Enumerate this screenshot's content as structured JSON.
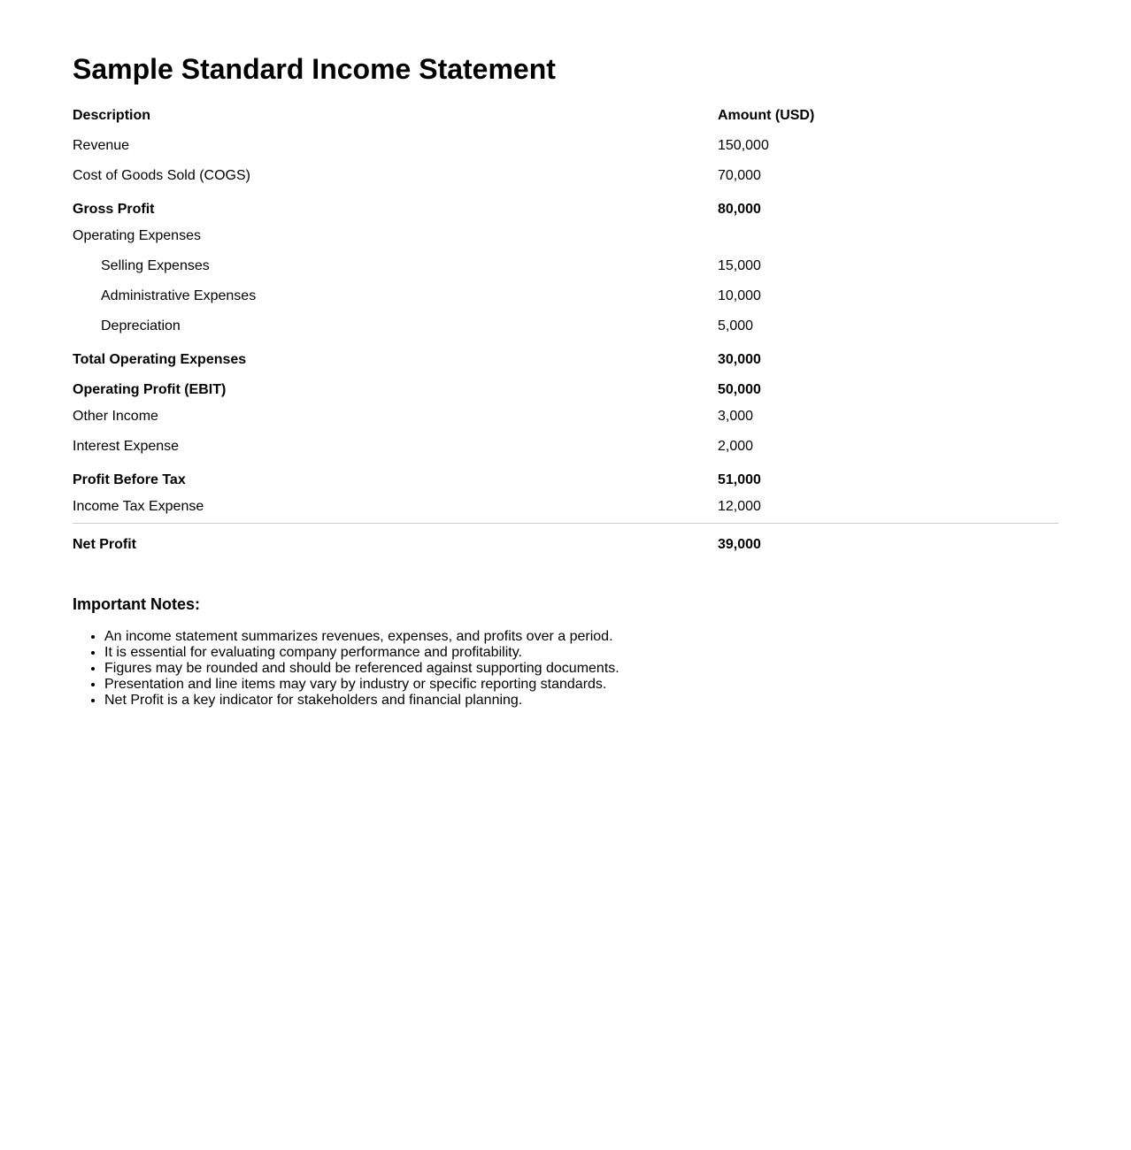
{
  "title": "Sample Standard Income Statement",
  "table": {
    "headers": {
      "description": "Description",
      "amount": "Amount (USD)"
    },
    "rows": [
      {
        "description": "Revenue",
        "amount": "150,000"
      },
      {
        "description": "Cost of Goods Sold (COGS)",
        "amount": "70,000"
      },
      {
        "description": "Gross Profit",
        "amount": "80,000"
      },
      {
        "description": "Operating Expenses",
        "amount": ""
      },
      {
        "description": "Selling Expenses",
        "amount": "15,000"
      },
      {
        "description": "Administrative Expenses",
        "amount": "10,000"
      },
      {
        "description": "Depreciation",
        "amount": "5,000"
      },
      {
        "description": "Total Operating Expenses",
        "amount": "30,000"
      },
      {
        "description": "Operating Profit (EBIT)",
        "amount": "50,000"
      },
      {
        "description": "Other Income",
        "amount": "3,000"
      },
      {
        "description": "Interest Expense",
        "amount": "2,000"
      },
      {
        "description": "Profit Before Tax",
        "amount": "51,000"
      },
      {
        "description": "Income Tax Expense",
        "amount": "12,000"
      },
      {
        "description": "Net Profit",
        "amount": "39,000"
      }
    ]
  },
  "notes": {
    "heading": "Important Notes:",
    "items": [
      "An income statement summarizes revenues, expenses, and profits over a period.",
      "It is essential for evaluating company performance and profitability.",
      "Figures may be rounded and should be referenced against supporting documents.",
      "Presentation and line items may vary by industry or specific reporting standards.",
      "Net Profit is a key indicator for stakeholders and financial planning."
    ]
  }
}
